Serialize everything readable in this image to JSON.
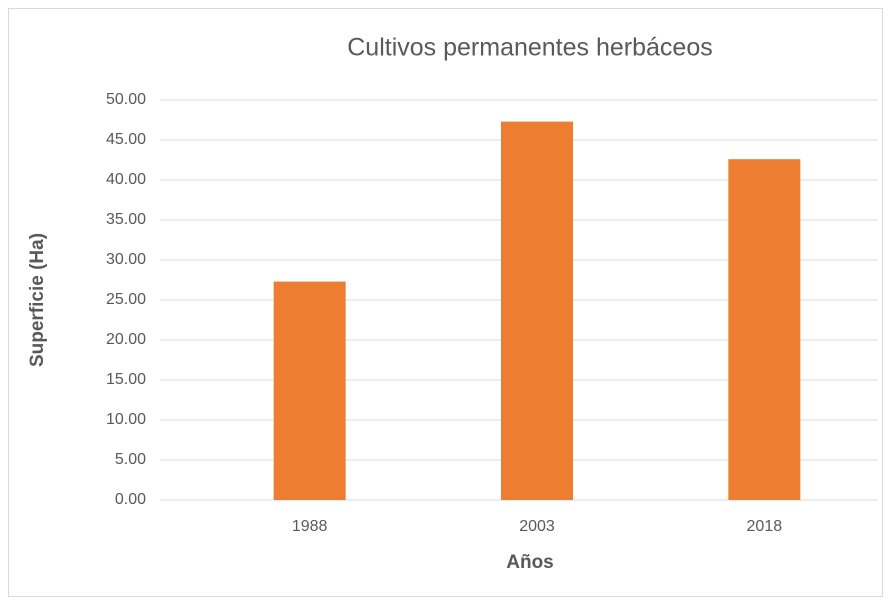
{
  "chart_data": {
    "type": "bar",
    "title": "Cultivos permanentes herbáceos",
    "x_label": "Años",
    "y_label": "Superficie (Ha)",
    "categories": [
      "1988",
      "2003",
      "2018"
    ],
    "values": [
      27.3,
      47.3,
      42.6
    ],
    "color": "#ed7d31",
    "ylim": [
      0,
      50
    ],
    "yticks": [
      {
        "value": 0,
        "label": "0.00"
      },
      {
        "value": 5,
        "label": "5.00"
      },
      {
        "value": 10,
        "label": "10.00"
      },
      {
        "value": 15,
        "label": "15.00"
      },
      {
        "value": 20,
        "label": "20.00"
      },
      {
        "value": 25,
        "label": "25.00"
      },
      {
        "value": 30,
        "label": "30.00"
      },
      {
        "value": 35,
        "label": "35.00"
      },
      {
        "value": 40,
        "label": "40.00"
      },
      {
        "value": 45,
        "label": "45.00"
      },
      {
        "value": 50,
        "label": "50.00"
      }
    ],
    "grid": true
  }
}
